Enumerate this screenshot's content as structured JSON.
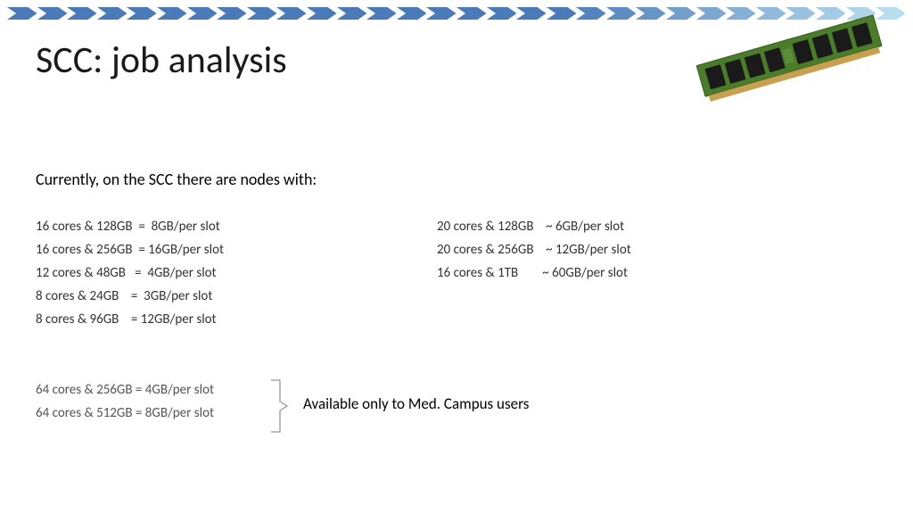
{
  "title": "SCC: job analysis",
  "subtitle": "Currently, on the SCC there are nodes with:",
  "left_col": [
    "16 cores & 128GB  =  8GB/per slot",
    "16 cores & 256GB  = 16GB/per slot",
    "12 cores & 48GB   =  4GB/per slot",
    "8 cores & 24GB    =  3GB/per slot",
    "8 cores & 96GB    = 12GB/per slot"
  ],
  "right_col": [
    "20 cores & 128GB    ~ 6GB/per slot",
    "20 cores & 256GB    ~ 12GB/per slot",
    "16 cores & 1TB        ~ 60GB/per slot"
  ],
  "bottom_left": [
    "64 cores & 256GB = 4GB/per slot",
    "64 cores & 512GB = 8GB/per slot"
  ],
  "note": "Available only to Med. Campus users",
  "chevron": {
    "count": 30,
    "colors_dark_to_light": [
      "#4a7ab8",
      "#5483bd",
      "#5e8cc2",
      "#6895c7",
      "#729ecc",
      "#7ca7d1",
      "#86b0d6",
      "#90b9db",
      "#9ac2e0",
      "#a4cbe5",
      "#aed4ea",
      "#b8ddef"
    ],
    "solid_color": "#4a7ab8",
    "fade_start_index": 18
  },
  "bracket_color": "#a6a6a6",
  "ram_illustration": {
    "pcb_color": "#4a7c2a",
    "pcb_edge": "#3a5f20",
    "chip_color": "#1a1a1a",
    "pin_color": "#c9a050"
  }
}
